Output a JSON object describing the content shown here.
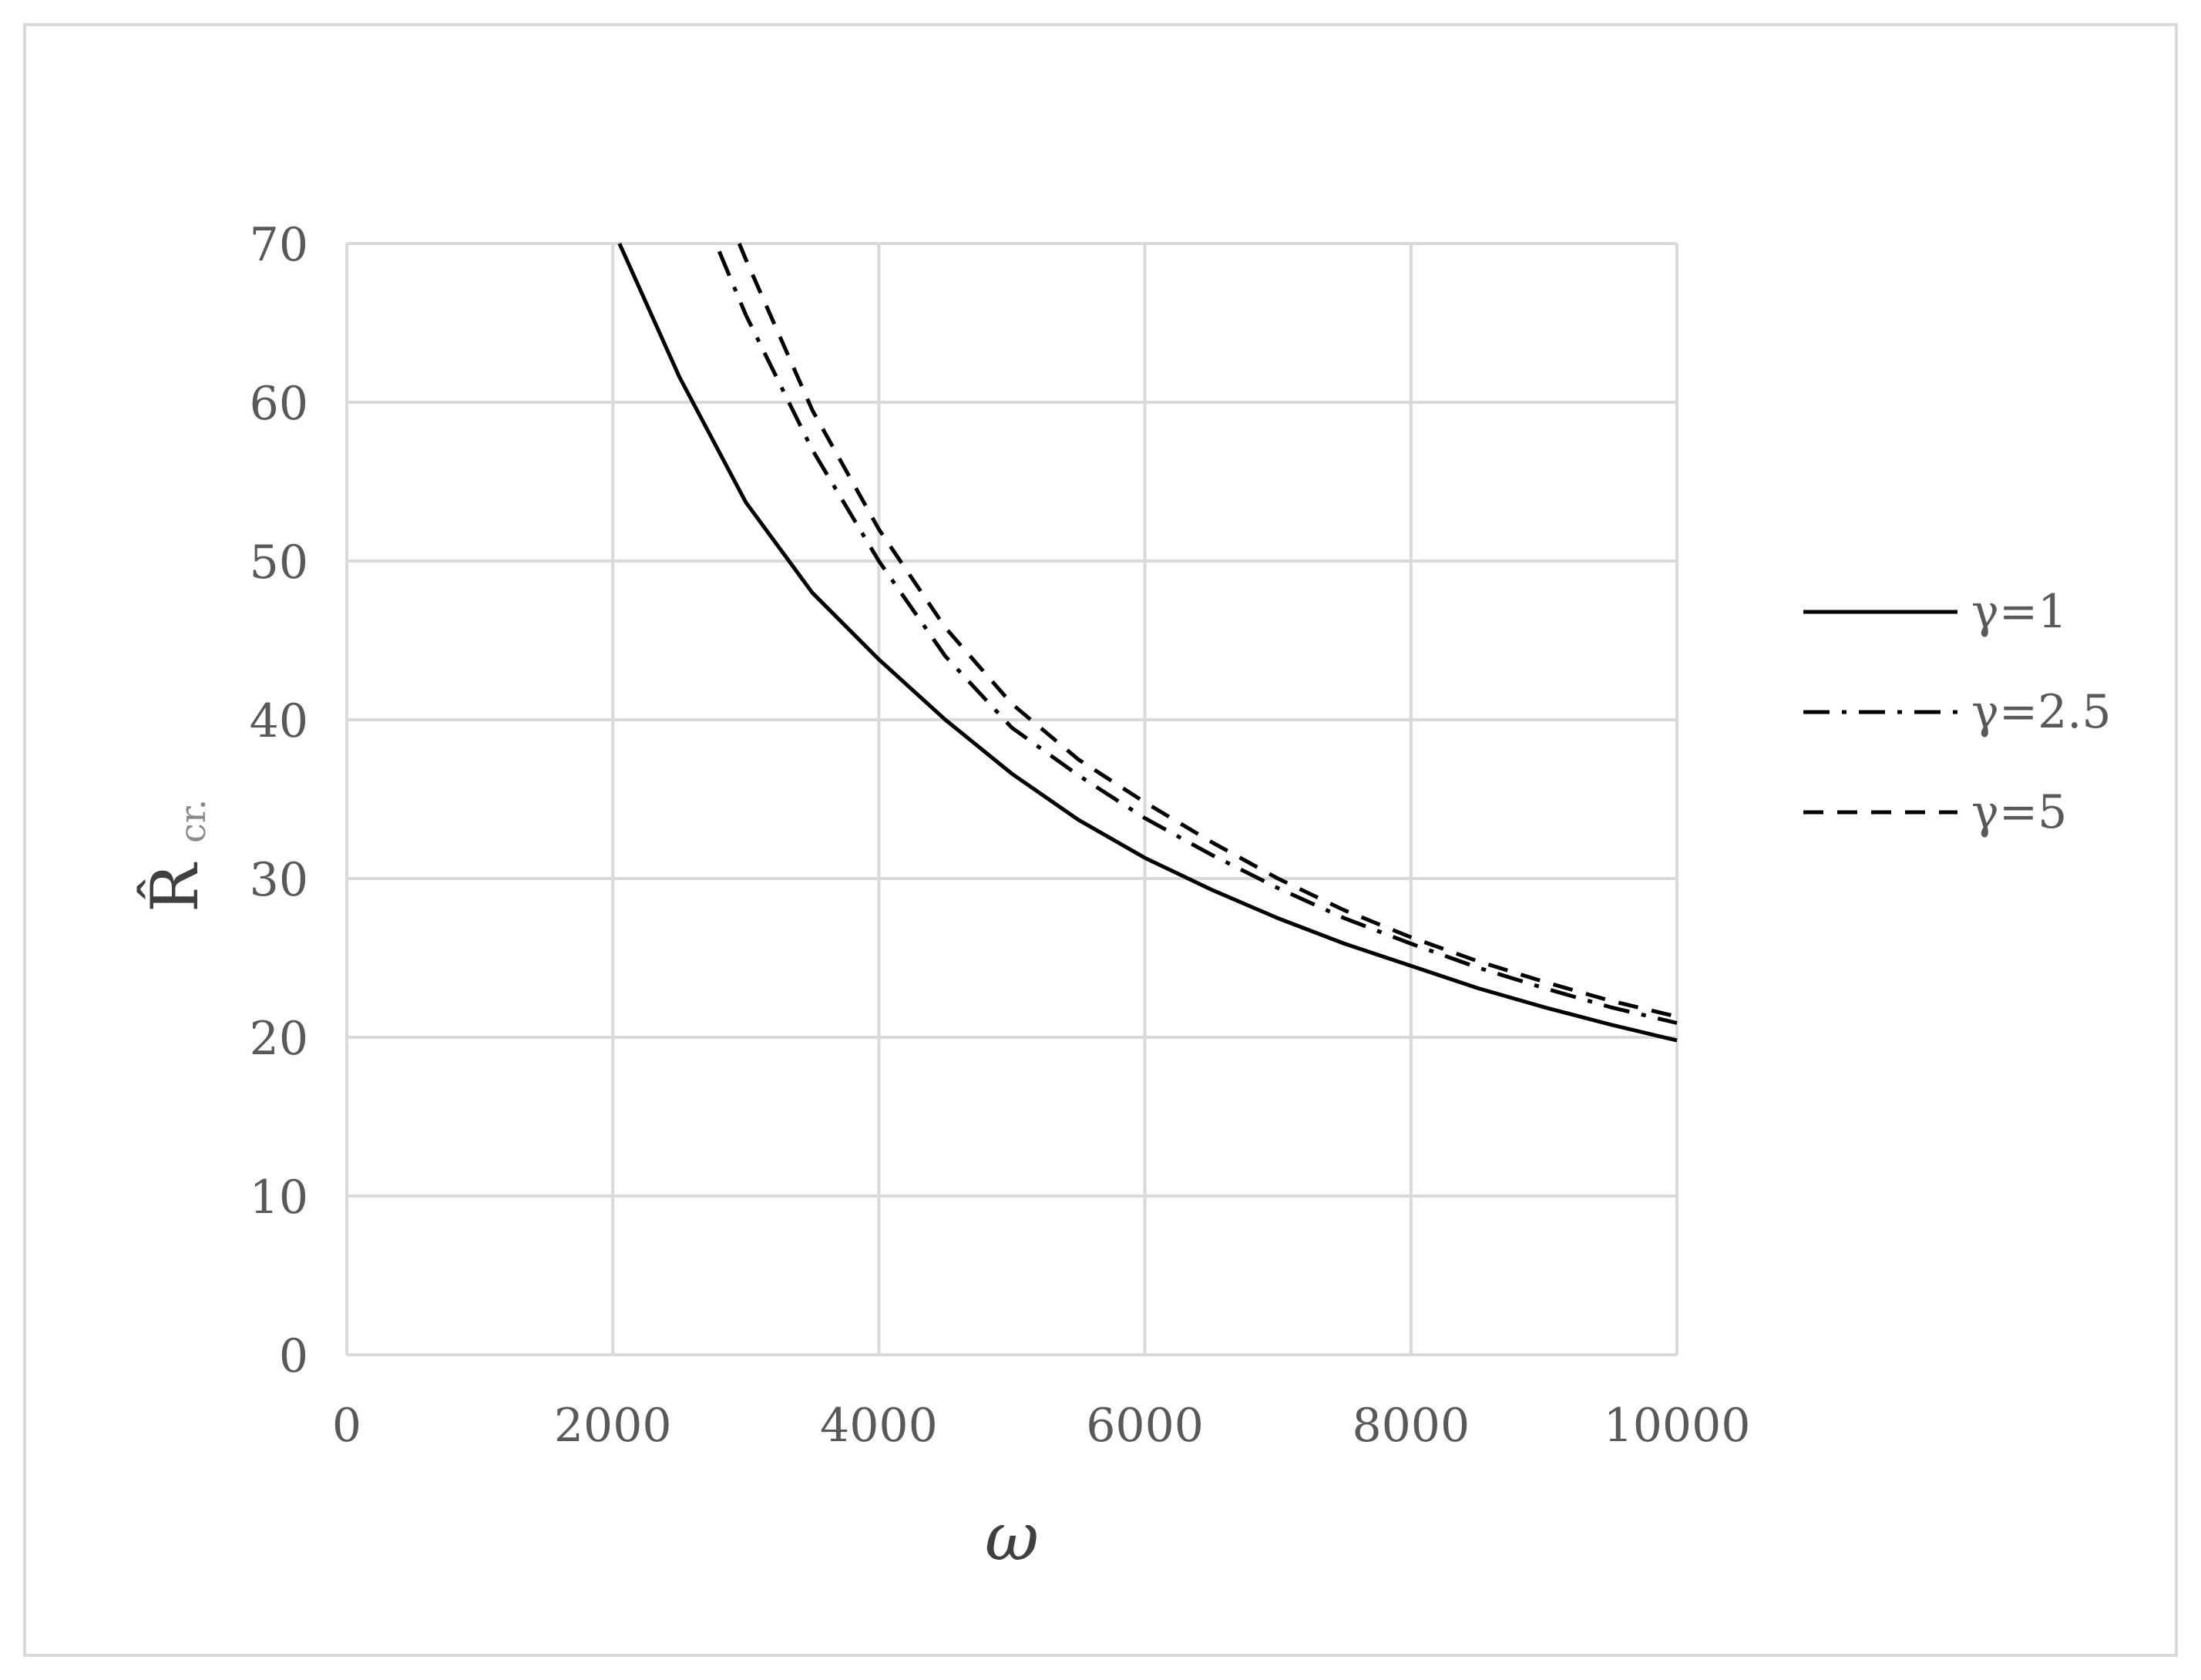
{
  "chart_data": {
    "type": "line",
    "title": "",
    "xlabel": "ω",
    "ylabel_main": "R̂",
    "ylabel_sub": "cr.",
    "xlim": [
      0,
      10000
    ],
    "ylim": [
      0,
      70
    ],
    "xticks": [
      0,
      2000,
      4000,
      6000,
      8000,
      10000
    ],
    "yticks": [
      0,
      10,
      20,
      30,
      40,
      50,
      60,
      70
    ],
    "grid": true,
    "legend_position": "right",
    "series": [
      {
        "name": "γ=1",
        "style": "solid",
        "color": "#000000",
        "points": [
          [
            2050,
            70
          ],
          [
            2500,
            61.6
          ],
          [
            3000,
            53.7
          ],
          [
            3500,
            48.0
          ],
          [
            4000,
            43.8
          ],
          [
            4500,
            40.0
          ],
          [
            5000,
            36.6
          ],
          [
            5500,
            33.7
          ],
          [
            6000,
            31.3
          ],
          [
            6500,
            29.3
          ],
          [
            7000,
            27.5
          ],
          [
            7500,
            25.9
          ],
          [
            8000,
            24.5
          ],
          [
            8500,
            23.1
          ],
          [
            9000,
            21.9
          ],
          [
            9500,
            20.8
          ],
          [
            10000,
            19.8
          ]
        ]
      },
      {
        "name": "γ=2.5",
        "style": "dashdot",
        "color": "#000000",
        "points": [
          [
            2800,
            69.5
          ],
          [
            3000,
            65.5
          ],
          [
            3500,
            57.0
          ],
          [
            4000,
            50.0
          ],
          [
            4500,
            44.0
          ],
          [
            5000,
            39.5
          ],
          [
            5500,
            36.5
          ],
          [
            6000,
            33.8
          ],
          [
            6500,
            31.5
          ],
          [
            7000,
            29.4
          ],
          [
            7500,
            27.5
          ],
          [
            8000,
            25.9
          ],
          [
            8500,
            24.4
          ],
          [
            9000,
            23.1
          ],
          [
            9500,
            21.9
          ],
          [
            10000,
            20.9
          ]
        ]
      },
      {
        "name": "γ=5",
        "style": "dashed",
        "color": "#000000",
        "points": [
          [
            2950,
            70
          ],
          [
            3000,
            69.0
          ],
          [
            3500,
            59.5
          ],
          [
            4000,
            52.0
          ],
          [
            4500,
            45.8
          ],
          [
            5000,
            41.0
          ],
          [
            5500,
            37.5
          ],
          [
            6000,
            34.8
          ],
          [
            6500,
            32.3
          ],
          [
            7000,
            30.0
          ],
          [
            7500,
            28.0
          ],
          [
            8000,
            26.3
          ],
          [
            8500,
            24.8
          ],
          [
            9000,
            23.5
          ],
          [
            9500,
            22.3
          ],
          [
            10000,
            21.3
          ]
        ]
      }
    ]
  }
}
